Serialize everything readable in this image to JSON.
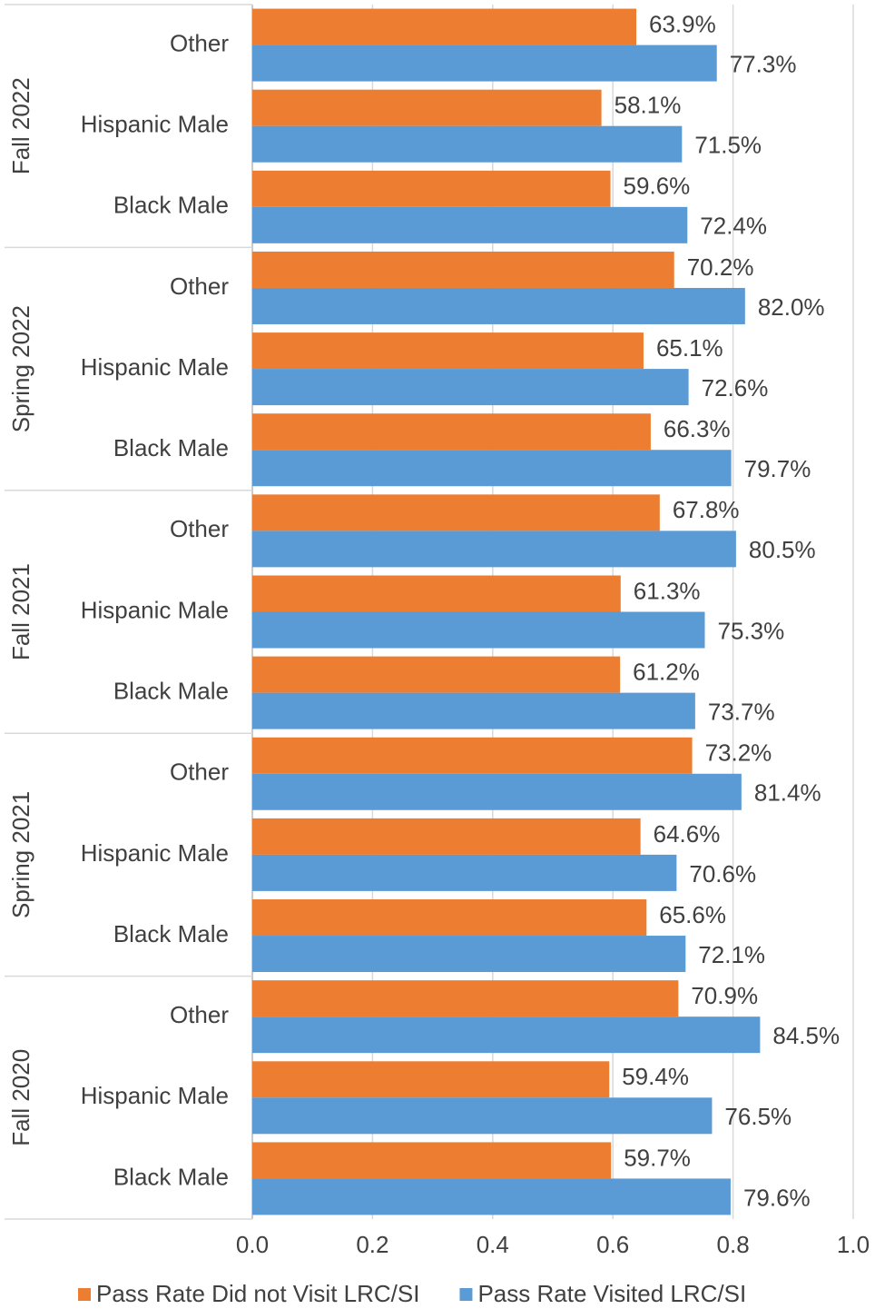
{
  "chart_data": {
    "type": "bar",
    "orientation": "horizontal",
    "groups": [
      "Fall 2022",
      "Spring 2022",
      "Fall 2021",
      "Spring 2021",
      "Fall 2020"
    ],
    "categories": [
      "Other",
      "Hispanic Male",
      "Black Male",
      "Other",
      "Hispanic Male",
      "Black Male",
      "Other",
      "Hispanic Male",
      "Black Male",
      "Other",
      "Hispanic Male",
      "Black Male",
      "Other",
      "Hispanic Male",
      "Black Male"
    ],
    "series": [
      {
        "name": "Pass Rate Did not Visit LRC/SI",
        "color": "#ed7d31",
        "values": [
          0.639,
          0.581,
          0.596,
          0.702,
          0.651,
          0.663,
          0.678,
          0.613,
          0.612,
          0.732,
          0.646,
          0.656,
          0.709,
          0.594,
          0.597
        ],
        "value_labels": [
          "63.9%",
          "58.1%",
          "59.6%",
          "70.2%",
          "65.1%",
          "66.3%",
          "67.8%",
          "61.3%",
          "61.2%",
          "73.2%",
          "64.6%",
          "65.6%",
          "70.9%",
          "59.4%",
          "59.7%"
        ]
      },
      {
        "name": "Pass Rate Visited LRC/SI",
        "color": "#5b9bd5",
        "values": [
          0.773,
          0.715,
          0.724,
          0.82,
          0.726,
          0.797,
          0.805,
          0.753,
          0.737,
          0.814,
          0.706,
          0.721,
          0.845,
          0.765,
          0.796
        ],
        "value_labels": [
          "77.3%",
          "71.5%",
          "72.4%",
          "82.0%",
          "72.6%",
          "79.7%",
          "80.5%",
          "75.3%",
          "73.7%",
          "81.4%",
          "70.6%",
          "72.1%",
          "84.5%",
          "76.5%",
          "79.6%"
        ]
      }
    ],
    "xlim": [
      0,
      1
    ],
    "xticks": [
      {
        "value": 0,
        "label": "0.0"
      },
      0.2,
      0.4,
      0.6,
      0.8,
      {
        "value": 1,
        "label": "1.0"
      }
    ],
    "grid": true,
    "legend": "bottom"
  }
}
